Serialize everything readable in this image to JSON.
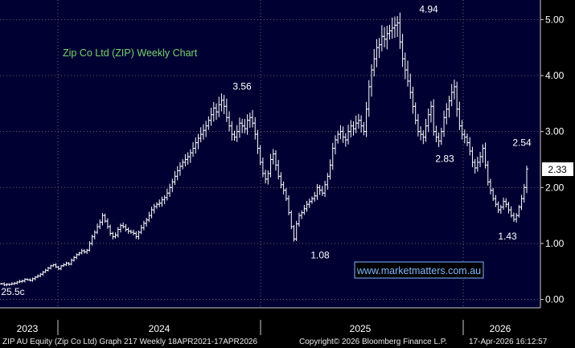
{
  "colors": {
    "plot_bg": "#000033",
    "grid": "#6a6a6a",
    "bars": "#ffffff",
    "title_green": "#7ad26a",
    "website_blue": "#7fb8ff",
    "price_tag_bg": "#ffffff"
  },
  "chart_data": {
    "type": "ohlc",
    "title": "Zip Co Ltd (ZIP) Weekly Chart",
    "website": "www.marketmatters.com.au",
    "y_ticks": [
      "5.00",
      "4.00",
      "3.00",
      "2.00",
      "1.00",
      "0.00"
    ],
    "y_tick_values": [
      5,
      4,
      3,
      2,
      1,
      0
    ],
    "ylim": [
      -0.15,
      5.35
    ],
    "x_tick_labels": [
      "2023",
      "2024",
      "2025",
      "2026"
    ],
    "last_price": "2.33",
    "annotations": [
      {
        "text": "25.5c",
        "value": 0.255
      },
      {
        "text": "3.56",
        "value": 3.56
      },
      {
        "text": "1.08",
        "value": 1.08
      },
      {
        "text": "4.94",
        "value": 4.94
      },
      {
        "text": "2.83",
        "value": 2.83
      },
      {
        "text": "1.43",
        "value": 1.43
      },
      {
        "text": "2.54",
        "value": 2.54
      }
    ],
    "weekly_close": [
      0.28,
      0.26,
      0.27,
      0.27,
      0.28,
      0.29,
      0.31,
      0.32,
      0.33,
      0.36,
      0.35,
      0.34,
      0.37,
      0.4,
      0.42,
      0.45,
      0.49,
      0.52,
      0.56,
      0.6,
      0.62,
      0.58,
      0.55,
      0.6,
      0.62,
      0.65,
      0.63,
      0.7,
      0.75,
      0.8,
      0.83,
      0.87,
      0.85,
      0.88,
      1.0,
      1.12,
      1.2,
      1.3,
      1.38,
      1.5,
      1.4,
      1.3,
      1.18,
      1.12,
      1.15,
      1.25,
      1.32,
      1.3,
      1.25,
      1.22,
      1.2,
      1.18,
      1.12,
      1.2,
      1.28,
      1.36,
      1.42,
      1.5,
      1.6,
      1.66,
      1.7,
      1.72,
      1.78,
      1.82,
      1.9,
      2.0,
      2.1,
      2.2,
      2.3,
      2.38,
      2.45,
      2.5,
      2.55,
      2.62,
      2.7,
      2.8,
      2.88,
      2.95,
      3.02,
      3.1,
      3.2,
      3.3,
      3.42,
      3.35,
      3.48,
      3.56,
      3.45,
      3.25,
      3.1,
      2.95,
      2.9,
      3.0,
      3.15,
      3.1,
      3.05,
      3.2,
      3.25,
      3.15,
      2.95,
      2.7,
      2.45,
      2.25,
      2.15,
      2.25,
      2.5,
      2.6,
      2.4,
      2.2,
      2.05,
      1.95,
      1.8,
      1.55,
      1.3,
      1.08,
      1.35,
      1.5,
      1.55,
      1.62,
      1.7,
      1.75,
      1.8,
      1.85,
      2.0,
      1.95,
      1.9,
      2.05,
      2.2,
      2.4,
      2.7,
      2.85,
      2.95,
      3.0,
      2.9,
      2.85,
      3.0,
      3.1,
      3.05,
      3.15,
      3.2,
      3.1,
      3.0,
      3.4,
      3.8,
      4.1,
      4.3,
      4.5,
      4.55,
      4.7,
      4.65,
      4.75,
      4.8,
      4.85,
      4.9,
      4.94,
      4.6,
      4.3,
      4.1,
      3.9,
      3.7,
      3.45,
      3.2,
      3.0,
      2.95,
      2.9,
      3.1,
      3.3,
      3.45,
      3.0,
      2.9,
      2.83,
      3.0,
      3.25,
      3.4,
      3.55,
      3.7,
      3.8,
      3.4,
      3.1,
      2.95,
      2.9,
      2.8,
      2.65,
      2.45,
      2.35,
      2.45,
      2.55,
      2.7,
      2.4,
      2.1,
      1.95,
      1.8,
      1.7,
      1.6,
      1.65,
      1.75,
      1.7,
      1.6,
      1.5,
      1.43,
      1.5,
      1.65,
      1.8,
      2.0,
      2.33
    ]
  },
  "footer": {
    "left": "ZIP AU Equity (Zip Co Ltd) Graph 217 Weekly 18APR2021-17APR2026",
    "middle": "Copyright© 2026 Bloomberg Finance L.P.",
    "right": "17-Apr-2026 16:12:57"
  }
}
